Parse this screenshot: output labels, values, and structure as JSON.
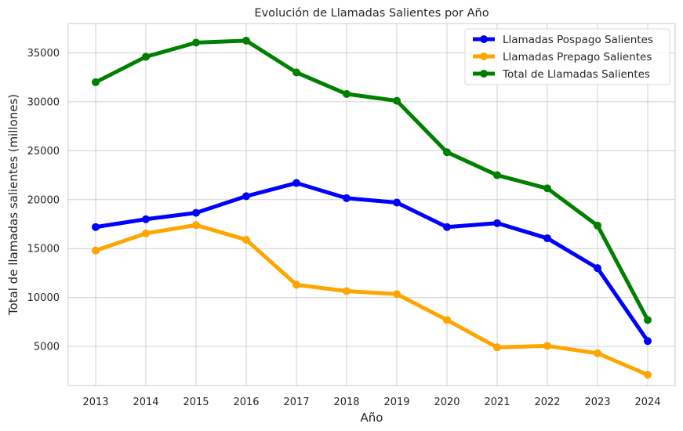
{
  "chart_data": {
    "type": "line",
    "title": "Evolución de Llamadas Salientes por Año",
    "xlabel": "Año",
    "ylabel": "Total de llamadas salientes (millones)",
    "x": [
      "2013",
      "2014",
      "2015",
      "2016",
      "2017",
      "2018",
      "2019",
      "2020",
      "2021",
      "2022",
      "2023",
      "2024"
    ],
    "yticks": [
      5000,
      10000,
      15000,
      20000,
      25000,
      30000,
      35000
    ],
    "ylim": [
      1000,
      38000
    ],
    "grid": true,
    "legend_position": "top-right",
    "series": [
      {
        "name": "Llamadas Pospago Salientes",
        "color": "#0000ff",
        "values": [
          17200,
          18000,
          18650,
          20350,
          21700,
          20150,
          19700,
          17200,
          17600,
          16050,
          13000,
          5550
        ]
      },
      {
        "name": "Llamadas Prepago Salientes",
        "color": "#ffa500",
        "values": [
          14800,
          16550,
          17400,
          15900,
          11300,
          10650,
          10350,
          7700,
          4900,
          5050,
          4300,
          2100
        ]
      },
      {
        "name": "Total de Llamadas Salientes",
        "color": "#008000",
        "values": [
          32000,
          34600,
          36050,
          36250,
          33000,
          30800,
          30100,
          24850,
          22500,
          21150,
          17350,
          7700
        ]
      }
    ]
  }
}
